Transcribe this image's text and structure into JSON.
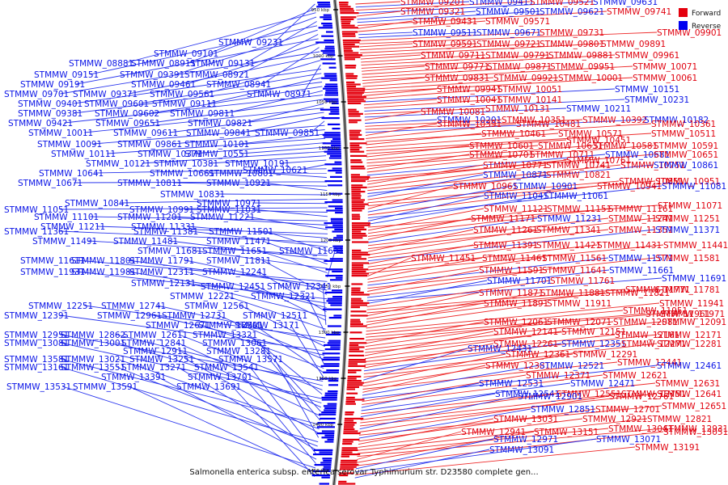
{
  "caption": "Salmonella enterica subsp. enterica serovar Typhimurium str. D23580 complete gen...",
  "legend": [
    {
      "label": "Forward",
      "color": "#e4000d"
    },
    {
      "label": "Reverse",
      "color": "#0000f0"
    }
  ],
  "backbone_ticks": [
    "950 kbp",
    "1000 kbp",
    "1050 kbp",
    "1100 kbp",
    "1150 kbp",
    "1200 kbp",
    "1250 kbp",
    "1300 kbp",
    "1350 kbp",
    "1400 kbp",
    "1450 kbp"
  ],
  "right_labels": [
    [
      "STMMW_09201",
      "f"
    ],
    [
      "STMMW_09411",
      "r"
    ],
    [
      "STMMW_09521",
      "f"
    ],
    [
      "STMMW_09631",
      "r"
    ],
    [
      "STMMW_09321",
      "f"
    ],
    [
      "STMMW_09501",
      "r"
    ],
    [
      "STMMW_09621",
      "r"
    ],
    [
      "STMMW_09741",
      "f"
    ],
    [
      "STMMW_09431",
      "f"
    ],
    [
      "STMMW_09571",
      "f"
    ],
    [
      "STMMW_09511",
      "r"
    ],
    [
      "STMMW_09671",
      "r"
    ],
    [
      "STMMW_09731",
      "f"
    ],
    [
      "STMMW_09901",
      "f"
    ],
    [
      "STMMW_09591",
      "f"
    ],
    [
      "STMMW_09721",
      "f"
    ],
    [
      "STMMW_09801",
      "f"
    ],
    [
      "STMMW_09891",
      "f"
    ],
    [
      "STMMW_09711",
      "f"
    ],
    [
      "STMMW_09791",
      "f"
    ],
    [
      "STMMW_09881",
      "f"
    ],
    [
      "STMMW_09961",
      "f"
    ],
    [
      "STMMW_09771",
      "f"
    ],
    [
      "STMMW_09871",
      "f"
    ],
    [
      "STMMW_09951",
      "f"
    ],
    [
      "STMMW_10071",
      "f"
    ],
    [
      "STMMW_09831",
      "f"
    ],
    [
      "STMMW_09921",
      "f"
    ],
    [
      "STMMW_10001",
      "f"
    ],
    [
      "STMMW_10061",
      "f"
    ],
    [
      "STMMW_09941",
      "f"
    ],
    [
      "STMMW_10051",
      "f"
    ],
    [
      "STMMW_10151",
      "r"
    ],
    [
      "STMMW_10041",
      "f"
    ],
    [
      "STMMW_10141",
      "f"
    ],
    [
      "STMMW_10231",
      "r"
    ],
    [
      "STMMW_10131",
      "f"
    ],
    [
      "STMMW_10211",
      "r"
    ],
    [
      "STMMW_10081",
      "f"
    ],
    [
      "STMMW_10201",
      "r"
    ],
    [
      "STMMW_10351",
      "f"
    ],
    [
      "STMMW_10392",
      "f"
    ],
    [
      "STMMW_10182",
      "r"
    ],
    [
      "STMMW_10391",
      "f"
    ],
    [
      "STMMW_10481",
      "f"
    ],
    [
      "STMMW_10361",
      "f"
    ],
    [
      "STMMW_10461",
      "f"
    ],
    [
      "STMMW_10571",
      "f"
    ],
    [
      "STMMW_10511",
      "f"
    ],
    [
      "STMMW_10451",
      "f"
    ],
    [
      "STMMW_10601",
      "f"
    ],
    [
      "STMMW_10631",
      "f"
    ],
    [
      "STMMW_10581",
      "f"
    ],
    [
      "STMMW_10591",
      "f"
    ],
    [
      "STMMW_10701",
      "f"
    ],
    [
      "STMMW_10711",
      "f"
    ],
    [
      "STMMW_10681",
      "r"
    ],
    [
      "STMMW_10651",
      "f"
    ],
    [
      "STMMW_10761",
      "f"
    ],
    [
      "STMMW_10771",
      "f"
    ],
    [
      "STMMW_10741",
      "f"
    ],
    [
      "STMMW_10751",
      "f"
    ],
    [
      "STMMW_10861",
      "r"
    ],
    [
      "STMMW_10871",
      "r"
    ],
    [
      "STMMW_10821",
      "f"
    ],
    [
      "STMMW_10851",
      "f"
    ],
    [
      "STMMW_10951",
      "f"
    ],
    [
      "STMMW_10961",
      "f"
    ],
    [
      "STMMW_10901",
      "r"
    ],
    [
      "STMMW_10941",
      "f"
    ],
    [
      "STMMW_11081",
      "r"
    ],
    [
      "STMMW_11041",
      "r"
    ],
    [
      "STMMW_11061",
      "r"
    ],
    [
      "STMMW_11071",
      "f"
    ],
    [
      "STMMW_11121",
      "f"
    ],
    [
      "STMMW_11151",
      "f"
    ],
    [
      "STMMW_11161",
      "f"
    ],
    [
      "STMMW_11171",
      "f"
    ],
    [
      "STMMW_11231",
      "r"
    ],
    [
      "STMMW_11241",
      "f"
    ],
    [
      "STMMW_11251",
      "f"
    ],
    [
      "STMMW_11261",
      "f"
    ],
    [
      "STMMW_11341",
      "f"
    ],
    [
      "STMMW_11351",
      "f"
    ],
    [
      "STMMW_11371",
      "r"
    ],
    [
      "STMMW_11391",
      "f"
    ],
    [
      "STMMW_11421",
      "f"
    ],
    [
      "STMMW_11431",
      "f"
    ],
    [
      "STMMW_11441",
      "f"
    ],
    [
      "STMMW_11451",
      "f"
    ],
    [
      "STMMW_11461",
      "f"
    ],
    [
      "STMMW_11561",
      "f"
    ],
    [
      "STMMW_11571",
      "r"
    ],
    [
      "STMMW_11581",
      "f"
    ],
    [
      "STMMW_11591",
      "f"
    ],
    [
      "STMMW_11641",
      "f"
    ],
    [
      "STMMW_11661",
      "r"
    ],
    [
      "STMMW_11691",
      "r"
    ],
    [
      "STMMW_11701",
      "r"
    ],
    [
      "STMMW_11761",
      "f"
    ],
    [
      "STMMW_11771",
      "f"
    ],
    [
      "STMMW_11781",
      "f"
    ],
    [
      "STMMW_11871",
      "f"
    ],
    [
      "STMMW_11881",
      "f"
    ],
    [
      "STMMW_11821",
      "f"
    ],
    [
      "STMMW_11891",
      "f"
    ],
    [
      "STMMW_11911",
      "f"
    ],
    [
      "STMMW_11941",
      "f"
    ],
    [
      "STMMW_11951",
      "f"
    ],
    [
      "STMMW_11961",
      "f"
    ],
    [
      "STMMW_11971",
      "f"
    ],
    [
      "STMMW_12061",
      "f"
    ],
    [
      "STMMW_12071",
      "f"
    ],
    [
      "STMMW_12081",
      "f"
    ],
    [
      "STMMW_12091",
      "f"
    ],
    [
      "STMMW_12141",
      "f"
    ],
    [
      "STMMW_12151",
      "f"
    ],
    [
      "STMMW_12161",
      "f"
    ],
    [
      "STMMW_12171",
      "f"
    ],
    [
      "STMMW_12261",
      "f"
    ],
    [
      "STMMW_12351",
      "r"
    ],
    [
      "STMMW_12271",
      "f"
    ],
    [
      "STMMW_12281",
      "f"
    ],
    [
      "STMMW_12431",
      "r"
    ],
    [
      "STMMW_12361",
      "f"
    ],
    [
      "STMMW_12291",
      "f"
    ],
    [
      "STMMW_12441",
      "f"
    ],
    [
      "STMMW_12381",
      "f"
    ],
    [
      "STMMW_12521",
      "r"
    ],
    [
      "STMMW_12461",
      "r"
    ],
    [
      "STMMW_12371",
      "f"
    ],
    [
      "STMMW_12621",
      "f"
    ],
    [
      "STMMW_12531",
      "r"
    ],
    [
      "STMMW_12471",
      "r"
    ],
    [
      "STMMW_12631",
      "f"
    ],
    [
      "STMMW_12541",
      "r"
    ],
    [
      "STMMW_12551",
      "f"
    ],
    [
      "STMMW_12751",
      "f"
    ],
    [
      "STMMW_12641",
      "f"
    ],
    [
      "STMMW_12901",
      "r"
    ],
    [
      "STMMW_12761",
      "f"
    ],
    [
      "STMMW_12651",
      "f"
    ],
    [
      "STMMW_12851",
      "r"
    ],
    [
      "STMMW_12701",
      "f"
    ],
    [
      "STMMW_13031",
      "f"
    ],
    [
      "STMMW_12921",
      "f"
    ],
    [
      "STMMW_12821",
      "f"
    ],
    [
      "STMMW_13041",
      "f"
    ],
    [
      "STMMW_12931",
      "f"
    ],
    [
      "STMMW_12941",
      "f"
    ],
    [
      "STMMW_13151",
      "f"
    ],
    [
      "STMMW_13051",
      "f"
    ],
    [
      "STMMW_12971",
      "r"
    ],
    [
      "STMMW_13071",
      "r"
    ],
    [
      "STMMW_13191",
      "f"
    ],
    [
      "STMMW_13091",
      "r"
    ]
  ],
  "left_labels": [
    [
      "STMMW_09231",
      "r"
    ],
    [
      "STMMW_09101",
      "r"
    ],
    [
      "STMMW_08881",
      "r"
    ],
    [
      "STMMW_08911",
      "r"
    ],
    [
      "STMMW_09131",
      "r"
    ],
    [
      "STMMW_09151",
      "r"
    ],
    [
      "STMMW_09391",
      "r"
    ],
    [
      "STMMW_08921",
      "r"
    ],
    [
      "STMMW_09191",
      "r"
    ],
    [
      "STMMW_09461",
      "r"
    ],
    [
      "STMMW_08941",
      "r"
    ],
    [
      "STMMW_09701",
      "r"
    ],
    [
      "STMMW_09371",
      "r"
    ],
    [
      "STMMW_09561",
      "r"
    ],
    [
      "STMMW_08971",
      "r"
    ],
    [
      "STMMW_09401",
      "r"
    ],
    [
      "STMMW_09601",
      "r"
    ],
    [
      "STMMW_09111",
      "r"
    ],
    [
      "STMMW_09381",
      "r"
    ],
    [
      "STMMW_09602",
      "r"
    ],
    [
      "STMMW_09811",
      "r"
    ],
    [
      "STMMW_09421",
      "r"
    ],
    [
      "STMMW_09651",
      "r"
    ],
    [
      "STMMW_09821",
      "r"
    ],
    [
      "STMMW_10011",
      "r"
    ],
    [
      "STMMW_09611",
      "r"
    ],
    [
      "STMMW_09841",
      "r"
    ],
    [
      "STMMW_09851",
      "r"
    ],
    [
      "STMMW_10091",
      "r"
    ],
    [
      "STMMW_09861",
      "r"
    ],
    [
      "STMMW_10101",
      "r"
    ],
    [
      "STMMW_10111",
      "r"
    ],
    [
      "STMMW_10371",
      "r"
    ],
    [
      "STMMW_10551",
      "r"
    ],
    [
      "STMMW_10121",
      "r"
    ],
    [
      "STMMW_10381",
      "r"
    ],
    [
      "STMMW_10191",
      "r"
    ],
    [
      "STMMW_10621",
      "r"
    ],
    [
      "STMMW_10641",
      "r"
    ],
    [
      "STMMW_10661",
      "r"
    ],
    [
      "STMMW_10801",
      "r"
    ],
    [
      "STMMW_10671",
      "r"
    ],
    [
      "STMMW_10811",
      "r"
    ],
    [
      "STMMW_10921",
      "r"
    ],
    [
      "STMMW_10831",
      "r"
    ],
    [
      "STMMW_10841",
      "r"
    ],
    [
      "STMMW_10971",
      "r"
    ],
    [
      "STMMW_11051",
      "r"
    ],
    [
      "STMMW_10991",
      "r"
    ],
    [
      "STMMW_11031",
      "r"
    ],
    [
      "STMMW_11101",
      "r"
    ],
    [
      "STMMW_11201",
      "r"
    ],
    [
      "STMMW_11221",
      "r"
    ],
    [
      "STMMW_11211",
      "r"
    ],
    [
      "STMMW_11331",
      "r"
    ],
    [
      "STMMW_11361",
      "r"
    ],
    [
      "STMMW_11381",
      "r"
    ],
    [
      "STMMW_11501",
      "r"
    ],
    [
      "STMMW_11491",
      "r"
    ],
    [
      "STMMW_11481",
      "r"
    ],
    [
      "STMMW_11471",
      "r"
    ],
    [
      "STMMW_11681",
      "r"
    ],
    [
      "STMMW_11651",
      "r"
    ],
    [
      "STMMW_11631",
      "r"
    ],
    [
      "STMMW_11611",
      "r"
    ],
    [
      "STMMW_11801",
      "r"
    ],
    [
      "STMMW_11791",
      "r"
    ],
    [
      "STMMW_11811",
      "r"
    ],
    [
      "STMMW_11931",
      "r"
    ],
    [
      "STMMW_11981",
      "r"
    ],
    [
      "STMMW_12311",
      "r"
    ],
    [
      "STMMW_12241",
      "r"
    ],
    [
      "STMMW_12131",
      "r"
    ],
    [
      "STMMW_12451",
      "r"
    ],
    [
      "STMMW_12341",
      "r"
    ],
    [
      "STMMW_12221",
      "r"
    ],
    [
      "STMMW_12321",
      "r"
    ],
    [
      "STMMW_12251",
      "r"
    ],
    [
      "STMMW_12741",
      "r"
    ],
    [
      "STMMW_12561",
      "r"
    ],
    [
      "STMMW_12391",
      "r"
    ],
    [
      "STMMW_12961",
      "r"
    ],
    [
      "STMMW_12731",
      "r"
    ],
    [
      "STMMW_12511",
      "r"
    ],
    [
      "STMMW_12671",
      "r"
    ],
    [
      "STMMW_12501",
      "r"
    ],
    [
      "STMMW_13171",
      "r"
    ],
    [
      "STMMW_12951",
      "r"
    ],
    [
      "STMMW_12862",
      "r"
    ],
    [
      "STMMW_12611",
      "r"
    ],
    [
      "STMMW_13321",
      "r"
    ],
    [
      "STMMW_13081",
      "r"
    ],
    [
      "STMMW_13001",
      "r"
    ],
    [
      "STMMW_12841",
      "r"
    ],
    [
      "STMMW_13061",
      "r"
    ],
    [
      "STMMW_12911",
      "r"
    ],
    [
      "STMMW_13281",
      "r"
    ],
    [
      "STMMW_13581",
      "r"
    ],
    [
      "STMMW_13021",
      "r"
    ],
    [
      "STMMW_13251",
      "r"
    ],
    [
      "STMMW_13571",
      "r"
    ],
    [
      "STMMW_13161",
      "r"
    ],
    [
      "STMMW_13551",
      "r"
    ],
    [
      "STMMW_13271",
      "r"
    ],
    [
      "STMMW_13541",
      "r"
    ],
    [
      "STMMW_13391",
      "r"
    ],
    [
      "STMMW_13701",
      "r"
    ],
    [
      "STMMW_13531",
      "r"
    ],
    [
      "STMMW_13591",
      "r"
    ],
    [
      "STMMW_13691",
      "r"
    ]
  ]
}
